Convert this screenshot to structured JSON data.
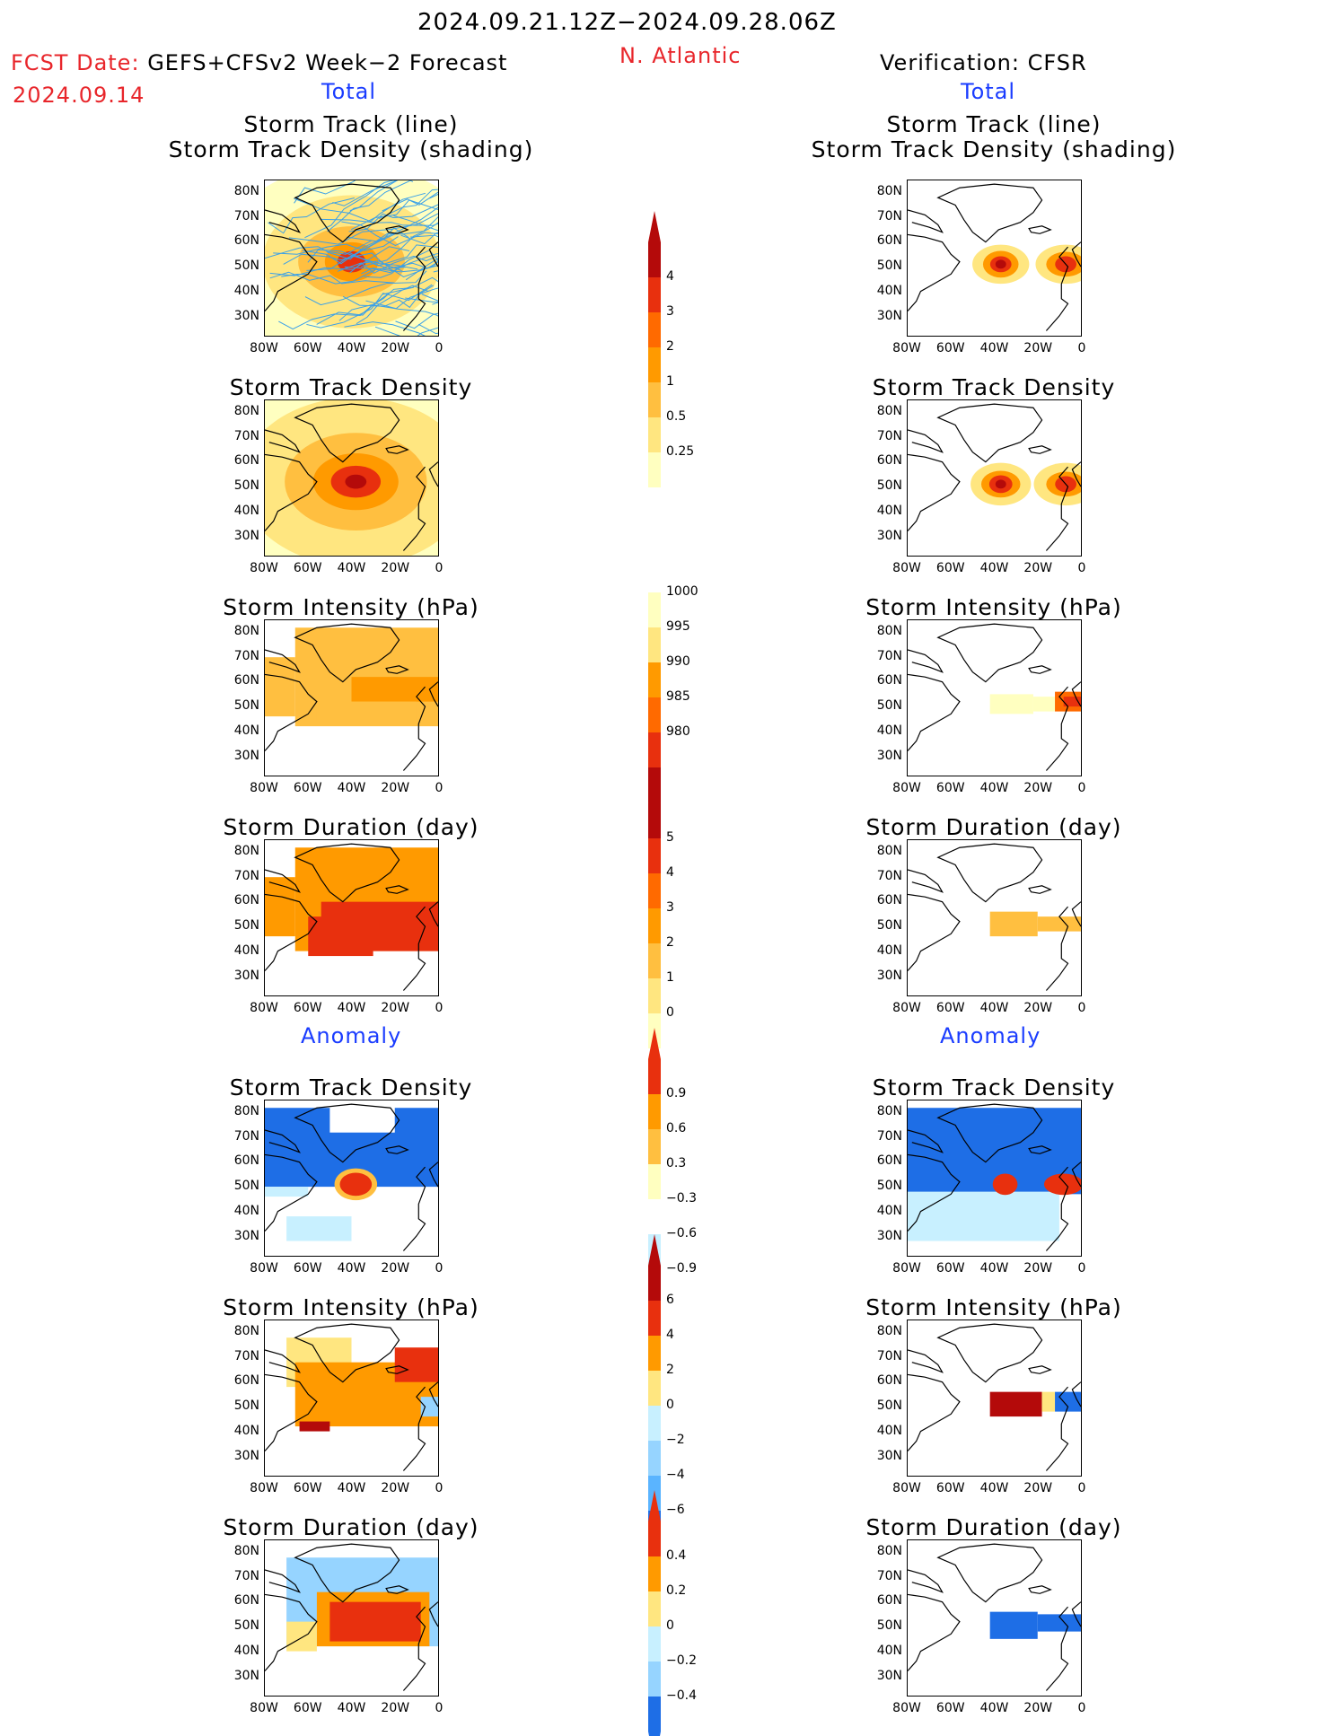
{
  "header": {
    "date_range": "2024.09.21.12Z−2024.09.28.06Z",
    "fcst_date_label": "FCST Date:",
    "forecast_name": "GEFS+CFSv2 Week−2 Forecast",
    "fcst_date_value": "2024.09.14",
    "region": "N. Atlantic",
    "verification": "Verification: CFSR"
  },
  "sections": {
    "total": "Total",
    "anomaly": "Anomaly"
  },
  "panel_titles": {
    "track_line": "Storm Track (line)",
    "track_density_shading": "Storm Track Density (shading)",
    "track_density": "Storm Track Density",
    "intensity": "Storm Intensity (hPa)",
    "duration": "Storm Duration (day)"
  },
  "axes": {
    "lat_ticks": [
      "80N",
      "70N",
      "60N",
      "50N",
      "40N",
      "30N"
    ],
    "lon_ticks": [
      "80W",
      "60W",
      "40W",
      "20W",
      "0"
    ]
  },
  "colorbars": {
    "density_total": [
      "4",
      "3",
      "2",
      "1",
      "0.5",
      "0.25"
    ],
    "intensity_total": [
      "1000",
      "995",
      "990",
      "985",
      "980"
    ],
    "duration_total": [
      "5",
      "4",
      "3",
      "2",
      "1",
      "0"
    ],
    "density_anom": [
      "0.9",
      "0.6",
      "0.3",
      "−0.3",
      "−0.6",
      "−0.9"
    ],
    "intensity_anom": [
      "6",
      "4",
      "2",
      "0",
      "−2",
      "−4",
      "−6"
    ],
    "duration_anom": [
      "0.4",
      "0.2",
      "0",
      "−0.2",
      "−0.4"
    ]
  },
  "colors": {
    "warm": [
      "#ffffc0",
      "#ffe680",
      "#ffbf40",
      "#ff9a00",
      "#ff6a00",
      "#e8300e",
      "#b40a0a"
    ],
    "cool": [
      "#c8f0ff",
      "#96d4ff",
      "#5ab4ff",
      "#1e6ee6",
      "#0a3cc8"
    ],
    "track_lines": "#3aa0e8"
  }
}
